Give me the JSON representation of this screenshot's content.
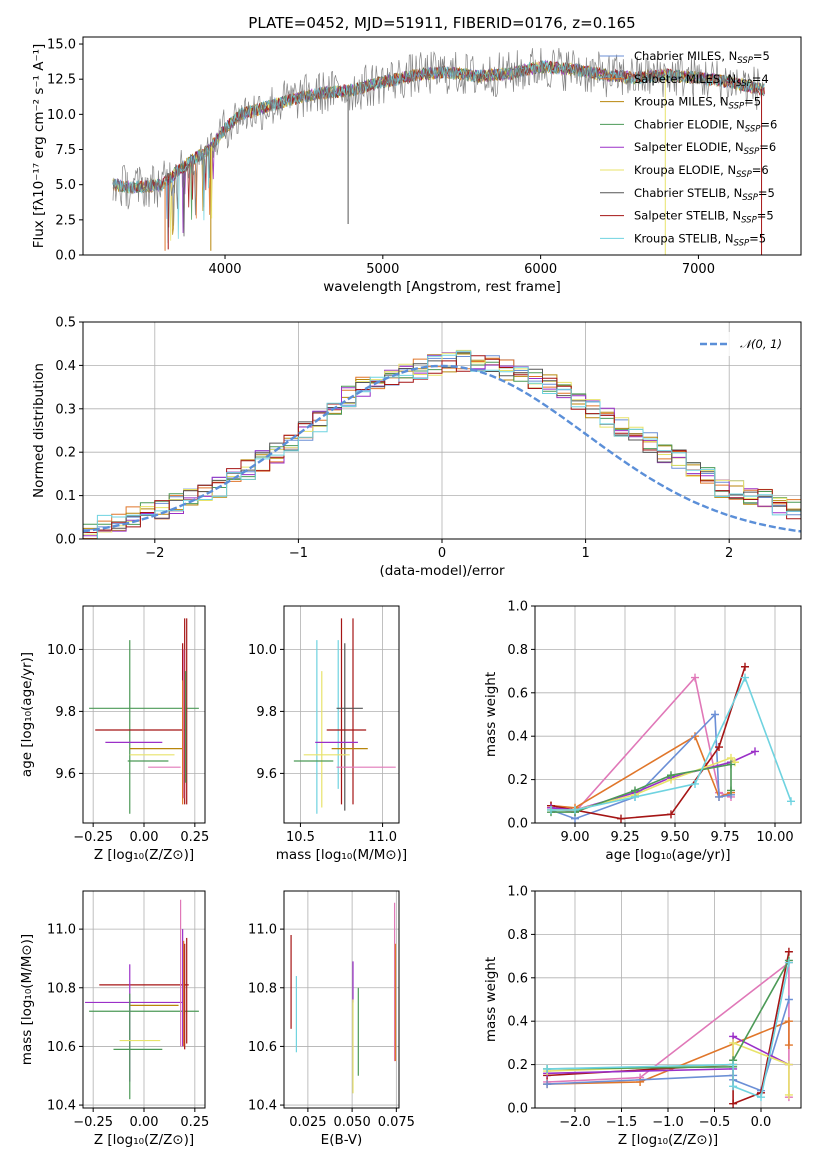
{
  "figure_title": "PLATE=0452, MJD=51911, FIBERID=0176, z=0.165",
  "colors": {
    "Chabrier MILES": "#6b8fd6",
    "Salpeter MILES": "#e0762a",
    "Kroupa MILES": "#b8860b",
    "Chabrier ELODIE": "#4c9a57",
    "Salpeter ELODIE": "#9b30c8",
    "Kroupa ELODIE": "#e8e36a",
    "Chabrier STELIB": "#555555",
    "Salpeter STELIB": "#a51515",
    "Kroupa STELIB": "#6fd3e0",
    "extra_pink": "#e078b8",
    "extra_green": "#a9cf6b",
    "normal_curve": "#5b8fd8"
  },
  "chart_data": [
    {
      "id": "spectrum",
      "type": "line",
      "title": "PLATE=0452, MJD=51911, FIBERID=0176, z=0.165",
      "xlabel": "wavelength [Angstrom, rest frame]",
      "ylabel": "Flux [fλ10⁻¹⁷ erg cm⁻² s⁻¹ A⁻¹]",
      "xlim": [
        3100,
        7650
      ],
      "ylim": [
        0,
        15.5
      ],
      "xticks": [
        4000,
        5000,
        6000,
        7000
      ],
      "yticks": [
        0.0,
        2.5,
        5.0,
        7.5,
        10.0,
        12.5,
        15.0
      ],
      "xtick_labels": [
        "4000",
        "5000",
        "6000",
        "7000"
      ],
      "ytick_labels": [
        "0.0",
        "2.5",
        "5.0",
        "7.5",
        "10.0",
        "12.5",
        "15.0"
      ],
      "continuum": {
        "x": [
          3290,
          3400,
          3600,
          3700,
          3800,
          3900,
          4000,
          4100,
          4200,
          4400,
          4600,
          4800,
          5000,
          5200,
          5400,
          5600,
          5800,
          6000,
          6200,
          6400,
          6600,
          6800,
          7000,
          7200,
          7400
        ],
        "y": [
          5.0,
          4.8,
          5.0,
          6.0,
          6.8,
          7.5,
          9.0,
          10.0,
          10.3,
          11.0,
          11.5,
          11.7,
          12.3,
          12.8,
          13.0,
          12.7,
          12.9,
          13.4,
          13.2,
          12.8,
          12.6,
          12.8,
          12.6,
          12.3,
          11.8
        ]
      },
      "legend": [
        {
          "label": "Chabrier MILES, N",
          "sub": "SSP",
          "value": "=5"
        },
        {
          "label": "Salpeter MILES, N",
          "sub": "SSP",
          "value": "=4"
        },
        {
          "label": "Kroupa MILES, N",
          "sub": "SSP",
          "value": "=5"
        },
        {
          "label": "Chabrier ELODIE, N",
          "sub": "SSP",
          "value": "=6"
        },
        {
          "label": "Salpeter ELODIE, N",
          "sub": "SSP",
          "value": "=6"
        },
        {
          "label": "Kroupa ELODIE, N",
          "sub": "SSP",
          "value": "=6"
        },
        {
          "label": "Chabrier STELIB, N",
          "sub": "SSP",
          "value": "=5"
        },
        {
          "label": "Salpeter STELIB, N",
          "sub": "SSP",
          "value": "=5"
        },
        {
          "label": "Kroupa STELIB, N",
          "sub": "SSP",
          "value": "=5"
        }
      ],
      "legend_placement": "upper-right"
    },
    {
      "id": "residuals",
      "type": "line",
      "xlabel": "(data-model)/error",
      "ylabel": "Normed distribution",
      "xlim": [
        -2.5,
        2.5
      ],
      "ylim": [
        0,
        0.5
      ],
      "xticks": [
        -2,
        -1,
        0,
        1,
        2
      ],
      "yticks": [
        0.0,
        0.1,
        0.2,
        0.3,
        0.4,
        0.5
      ],
      "xtick_labels": [
        "−2",
        "−1",
        "0",
        "1",
        "2"
      ],
      "ytick_labels": [
        "0.0",
        "0.1",
        "0.2",
        "0.3",
        "0.4",
        "0.5"
      ],
      "grid": true,
      "legend_label": "𝒩(0, 1)",
      "legend_placement": "upper-right",
      "bin_width": 0.1,
      "hist_base": [
        0.02,
        0.03,
        0.04,
        0.05,
        0.06,
        0.07,
        0.08,
        0.09,
        0.1,
        0.12,
        0.14,
        0.16,
        0.18,
        0.2,
        0.22,
        0.25,
        0.27,
        0.3,
        0.33,
        0.35,
        0.36,
        0.37,
        0.38,
        0.39,
        0.4,
        0.41,
        0.41,
        0.4,
        0.4,
        0.39,
        0.38,
        0.37,
        0.36,
        0.34,
        0.32,
        0.3,
        0.28,
        0.26,
        0.24,
        0.22,
        0.2,
        0.18,
        0.16,
        0.14,
        0.12,
        0.11,
        0.1,
        0.09,
        0.08,
        0.07
      ]
    },
    {
      "id": "age-vs-Z",
      "type": "scatter",
      "xlabel": "Z [log₁₀(Z/Z⊙)]",
      "ylabel": "age  [log₁₀(age/yr)]",
      "xlim": [
        -0.3,
        0.3
      ],
      "ylim": [
        9.44,
        10.14
      ],
      "xticks": [
        -0.25,
        0.0,
        0.25
      ],
      "yticks": [
        9.6,
        9.8,
        10.0
      ],
      "xtick_labels": [
        "−0.25",
        "0.00",
        "0.25"
      ],
      "ytick_labels": [
        "9.6",
        "9.8",
        "10.0"
      ],
      "grid": true,
      "crosses": [
        {
          "x": -0.07,
          "xe": 0.0,
          "y": 9.75,
          "ye": 0.28,
          "color": "#4c9a57"
        },
        {
          "x": 0.0,
          "xe": 0.27,
          "y": 9.81,
          "ye": 0.0,
          "color": "#4c9a57"
        },
        {
          "x": -0.02,
          "xe": 0.22,
          "y": 9.74,
          "ye": 0.0,
          "color": "#a51515"
        },
        {
          "x": -0.05,
          "xe": 0.14,
          "y": 9.7,
          "ye": 0.0,
          "color": "#9b30c8"
        },
        {
          "x": 0.06,
          "xe": 0.13,
          "y": 9.68,
          "ye": 0.0,
          "color": "#b8860b"
        },
        {
          "x": 0.04,
          "xe": 0.11,
          "y": 9.66,
          "ye": 0.0,
          "color": "#e8e36a"
        },
        {
          "x": 0.02,
          "xe": 0.1,
          "y": 9.64,
          "ye": 0.0,
          "color": "#4c9a57"
        },
        {
          "x": 0.1,
          "xe": 0.08,
          "y": 9.62,
          "ye": 0.0,
          "color": "#e078b8"
        },
        {
          "x": 0.19,
          "xe": 0.0,
          "y": 9.77,
          "ye": 0.25,
          "color": "#a51515"
        },
        {
          "x": 0.2,
          "xe": 0.0,
          "y": 9.8,
          "ye": 0.3,
          "color": "#a51515"
        },
        {
          "x": 0.21,
          "xe": 0.0,
          "y": 9.8,
          "ye": 0.3,
          "color": "#a51515"
        },
        {
          "x": 0.195,
          "xe": 0.0,
          "y": 9.76,
          "ye": 0.24,
          "color": "#e078b8"
        },
        {
          "x": 0.19,
          "xe": 0.0,
          "y": 9.7,
          "ye": 0.2,
          "color": "#e0762a"
        },
        {
          "x": 0.205,
          "xe": 0.0,
          "y": 9.75,
          "ye": 0.18,
          "color": "#4c9a57"
        }
      ]
    },
    {
      "id": "age-vs-mass",
      "type": "scatter",
      "xlabel": "mass [log₁₀(M/M⊙)]",
      "ylabel": "",
      "xlim": [
        10.4,
        11.1
      ],
      "ylim": [
        9.44,
        10.14
      ],
      "xticks": [
        10.5,
        11.0
      ],
      "yticks": [
        9.6,
        9.8,
        10.0
      ],
      "xtick_labels": [
        "10.5",
        "11.0"
      ],
      "ytick_labels": [
        "9.6",
        "9.8",
        "10.0"
      ],
      "grid": true,
      "crosses": [
        {
          "x": 10.6,
          "xe": 0.0,
          "y": 9.75,
          "ye": 0.28,
          "color": "#6fd3e0"
        },
        {
          "x": 10.63,
          "xe": 0.0,
          "y": 9.71,
          "ye": 0.22,
          "color": "#e8e36a"
        },
        {
          "x": 10.73,
          "xe": 0.0,
          "y": 9.79,
          "ye": 0.24,
          "color": "#6fd3e0"
        },
        {
          "x": 10.75,
          "xe": 0.0,
          "y": 9.8,
          "ye": 0.3,
          "color": "#a51515"
        },
        {
          "x": 10.77,
          "xe": 0.0,
          "y": 9.75,
          "ye": 0.27,
          "color": "#555555"
        },
        {
          "x": 10.82,
          "xe": 0.0,
          "y": 9.8,
          "ye": 0.3,
          "color": "#a51515"
        },
        {
          "x": 10.8,
          "xe": 0.08,
          "y": 9.81,
          "ye": 0.0,
          "color": "#555555"
        },
        {
          "x": 10.78,
          "xe": 0.12,
          "y": 9.74,
          "ye": 0.0,
          "color": "#a51515"
        },
        {
          "x": 10.72,
          "xe": 0.13,
          "y": 9.7,
          "ye": 0.0,
          "color": "#9b30c8"
        },
        {
          "x": 10.8,
          "xe": 0.11,
          "y": 9.68,
          "ye": 0.0,
          "color": "#b8860b"
        },
        {
          "x": 10.66,
          "xe": 0.14,
          "y": 9.66,
          "ye": 0.0,
          "color": "#e8e36a"
        },
        {
          "x": 10.58,
          "xe": 0.12,
          "y": 9.64,
          "ye": 0.0,
          "color": "#4c9a57"
        },
        {
          "x": 10.9,
          "xe": 0.18,
          "y": 9.62,
          "ye": 0.0,
          "color": "#e078b8"
        }
      ]
    },
    {
      "id": "mw-vs-age",
      "type": "line",
      "xlabel": "age  [log₁₀(age/yr)]",
      "ylabel": "mass weight",
      "xlim": [
        8.8,
        10.13
      ],
      "ylim": [
        0.0,
        1.0
      ],
      "xticks": [
        9.0,
        9.25,
        9.5,
        9.75,
        10.0
      ],
      "yticks": [
        0.0,
        0.2,
        0.4,
        0.6,
        0.8,
        1.0
      ],
      "xtick_labels": [
        "9.00",
        "9.25",
        "9.50",
        "9.75",
        "10.00"
      ],
      "ytick_labels": [
        "0.0",
        "0.2",
        "0.4",
        "0.6",
        "0.8",
        "1.0"
      ],
      "grid": true,
      "series": [
        {
          "color": "#e078b8",
          "x": [
            8.88,
            9.0,
            9.6,
            9.72,
            9.78
          ],
          "y": [
            0.07,
            0.05,
            0.67,
            0.14,
            0.12
          ]
        },
        {
          "color": "#e0762a",
          "x": [
            8.88,
            9.0,
            9.6,
            9.72,
            9.78
          ],
          "y": [
            0.08,
            0.07,
            0.4,
            0.12,
            0.14
          ]
        },
        {
          "color": "#6b8fd6",
          "x": [
            8.88,
            9.0,
            9.3,
            9.7,
            9.72,
            9.78
          ],
          "y": [
            0.06,
            0.02,
            0.12,
            0.5,
            0.12,
            0.13
          ]
        },
        {
          "color": "#a51515",
          "x": [
            8.88,
            9.23,
            9.48,
            9.72,
            9.85
          ],
          "y": [
            0.08,
            0.02,
            0.04,
            0.35,
            0.72
          ]
        },
        {
          "color": "#9b30c8",
          "x": [
            8.88,
            9.0,
            9.3,
            9.48,
            9.78,
            9.9
          ],
          "y": [
            0.07,
            0.06,
            0.14,
            0.21,
            0.28,
            0.33
          ]
        },
        {
          "color": "#e8e36a",
          "x": [
            8.88,
            9.0,
            9.3,
            9.48,
            9.78,
            9.8
          ],
          "y": [
            0.06,
            0.06,
            0.13,
            0.2,
            0.3,
            0.28
          ]
        },
        {
          "color": "#4c9a57",
          "x": [
            8.88,
            9.0,
            9.3,
            9.48,
            9.78,
            9.78
          ],
          "y": [
            0.05,
            0.05,
            0.15,
            0.22,
            0.27,
            0.15
          ]
        },
        {
          "color": "#6fd3e0",
          "x": [
            8.88,
            9.0,
            9.3,
            9.6,
            9.85,
            10.08
          ],
          "y": [
            0.06,
            0.06,
            0.12,
            0.18,
            0.67,
            0.1
          ]
        }
      ]
    },
    {
      "id": "mass-vs-Z",
      "type": "scatter",
      "xlabel": "Z [log₁₀(Z/Z⊙)]",
      "ylabel": "mass [log₁₀(M/M⊙)]",
      "xlim": [
        -0.3,
        0.3
      ],
      "ylim": [
        10.39,
        11.13
      ],
      "xticks": [
        -0.25,
        0.0,
        0.25
      ],
      "yticks": [
        10.4,
        10.6,
        10.8,
        11.0
      ],
      "xtick_labels": [
        "−0.25",
        "0.00",
        "0.25"
      ],
      "ytick_labels": [
        "10.4",
        "10.6",
        "10.8",
        "11.0"
      ],
      "grid": true,
      "crosses": [
        {
          "x": 0.0,
          "xe": 0.22,
          "y": 10.81,
          "ye": 0.0,
          "color": "#a51515"
        },
        {
          "x": 0.0,
          "xe": 0.27,
          "y": 10.72,
          "ye": 0.0,
          "color": "#4c9a57"
        },
        {
          "x": -0.05,
          "xe": 0.24,
          "y": 10.75,
          "ye": 0.0,
          "color": "#9b30c8"
        },
        {
          "x": 0.05,
          "xe": 0.12,
          "y": 10.74,
          "ye": 0.0,
          "color": "#b8860b"
        },
        {
          "x": -0.07,
          "xe": 0.0,
          "y": 10.68,
          "ye": 0.2,
          "color": "#9b30c8"
        },
        {
          "x": -0.07,
          "xe": 0.0,
          "y": 10.6,
          "ye": 0.18,
          "color": "#4c9a57"
        },
        {
          "x": -0.02,
          "xe": 0.1,
          "y": 10.62,
          "ye": 0.0,
          "color": "#e8e36a"
        },
        {
          "x": -0.03,
          "xe": 0.12,
          "y": 10.59,
          "ye": 0.0,
          "color": "#4c9a57"
        },
        {
          "x": 0.19,
          "xe": 0.0,
          "y": 10.8,
          "ye": 0.2,
          "color": "#9b30c8"
        },
        {
          "x": 0.2,
          "xe": 0.0,
          "y": 10.77,
          "ye": 0.18,
          "color": "#a51515"
        },
        {
          "x": 0.21,
          "xe": 0.0,
          "y": 10.79,
          "ye": 0.18,
          "color": "#a51515"
        },
        {
          "x": 0.18,
          "xe": 0.0,
          "y": 10.85,
          "ye": 0.25,
          "color": "#e078b8"
        },
        {
          "x": 0.195,
          "xe": 0.0,
          "y": 10.78,
          "ye": 0.18,
          "color": "#e0762a"
        }
      ]
    },
    {
      "id": "mass-vs-ebv",
      "type": "scatter",
      "xlabel": "E(B-V)",
      "ylabel": "",
      "xlim": [
        0.0115,
        0.0765
      ],
      "ylim": [
        10.39,
        11.13
      ],
      "xticks": [
        0.025,
        0.05,
        0.075
      ],
      "yticks": [
        10.4,
        10.6,
        10.8,
        11.0
      ],
      "xtick_labels": [
        "0.025",
        "0.050",
        "0.075"
      ],
      "ytick_labels": [
        "10.4",
        "10.6",
        "10.8",
        "11.0"
      ],
      "grid": true,
      "crosses": [
        {
          "x": 0.0155,
          "xe": 0.0,
          "y": 10.82,
          "ye": 0.16,
          "color": "#a51515"
        },
        {
          "x": 0.0185,
          "xe": 0.0,
          "y": 10.71,
          "ye": 0.13,
          "color": "#6fd3e0"
        },
        {
          "x": 0.0505,
          "xe": 0.0,
          "y": 10.82,
          "ye": 0.07,
          "color": "#9b30c8"
        },
        {
          "x": 0.0505,
          "xe": 0.0,
          "y": 10.6,
          "ye": 0.16,
          "color": "#e8e36a"
        },
        {
          "x": 0.0535,
          "xe": 0.0,
          "y": 10.65,
          "ye": 0.15,
          "color": "#4c9a57"
        },
        {
          "x": 0.074,
          "xe": 0.0,
          "y": 10.82,
          "ye": 0.27,
          "color": "#e078b8"
        },
        {
          "x": 0.0745,
          "xe": 0.0,
          "y": 10.75,
          "ye": 0.2,
          "color": "#e0762a"
        }
      ]
    },
    {
      "id": "mw-vs-Z",
      "type": "line",
      "xlabel": "Z [log₁₀(Z/Z⊙)]",
      "ylabel": "mass weight",
      "xlim": [
        -2.43,
        0.43
      ],
      "ylim": [
        0.0,
        1.0
      ],
      "xticks": [
        -2.0,
        -1.5,
        -1.0,
        -0.5,
        0.0
      ],
      "yticks": [
        0.0,
        0.2,
        0.4,
        0.6,
        0.8,
        1.0
      ],
      "xtick_labels": [
        "−2.0",
        "−1.5",
        "−1.0",
        "−0.5",
        "0.0"
      ],
      "ytick_labels": [
        "0.0",
        "0.2",
        "0.4",
        "0.6",
        "0.8",
        "1.0"
      ],
      "grid": true,
      "series": [
        {
          "color": "#e078b8",
          "x": [
            -2.3,
            -1.3,
            0.3,
            0.3
          ],
          "y": [
            0.12,
            0.14,
            0.67,
            0.05
          ]
        },
        {
          "color": "#e0762a",
          "x": [
            -2.3,
            -1.3,
            0.3,
            0.3
          ],
          "y": [
            0.11,
            0.12,
            0.4,
            0.29
          ]
        },
        {
          "color": "#6b8fd6",
          "x": [
            -2.3,
            -0.3,
            -0.3,
            0.0,
            0.3
          ],
          "y": [
            0.11,
            0.15,
            0.13,
            0.08,
            0.5
          ]
        },
        {
          "color": "#a51515",
          "x": [
            -2.3,
            -0.3,
            -0.3,
            0.0,
            0.3
          ],
          "y": [
            0.15,
            0.2,
            0.02,
            0.07,
            0.72
          ]
        },
        {
          "color": "#9b30c8",
          "x": [
            -2.3,
            -0.3,
            -0.3,
            0.3
          ],
          "y": [
            0.16,
            0.18,
            0.33,
            0.2
          ]
        },
        {
          "color": "#e8e36a",
          "x": [
            -2.3,
            -0.3,
            -0.3,
            0.3,
            0.3
          ],
          "y": [
            0.17,
            0.2,
            0.3,
            0.2,
            0.06
          ]
        },
        {
          "color": "#4c9a57",
          "x": [
            -2.3,
            -0.3,
            -0.3,
            0.3
          ],
          "y": [
            0.18,
            0.19,
            0.22,
            0.68
          ]
        },
        {
          "color": "#6fd3e0",
          "x": [
            -2.3,
            -0.3,
            -0.3,
            0.0,
            0.3
          ],
          "y": [
            0.18,
            0.2,
            0.1,
            0.05,
            0.67
          ]
        }
      ]
    }
  ]
}
